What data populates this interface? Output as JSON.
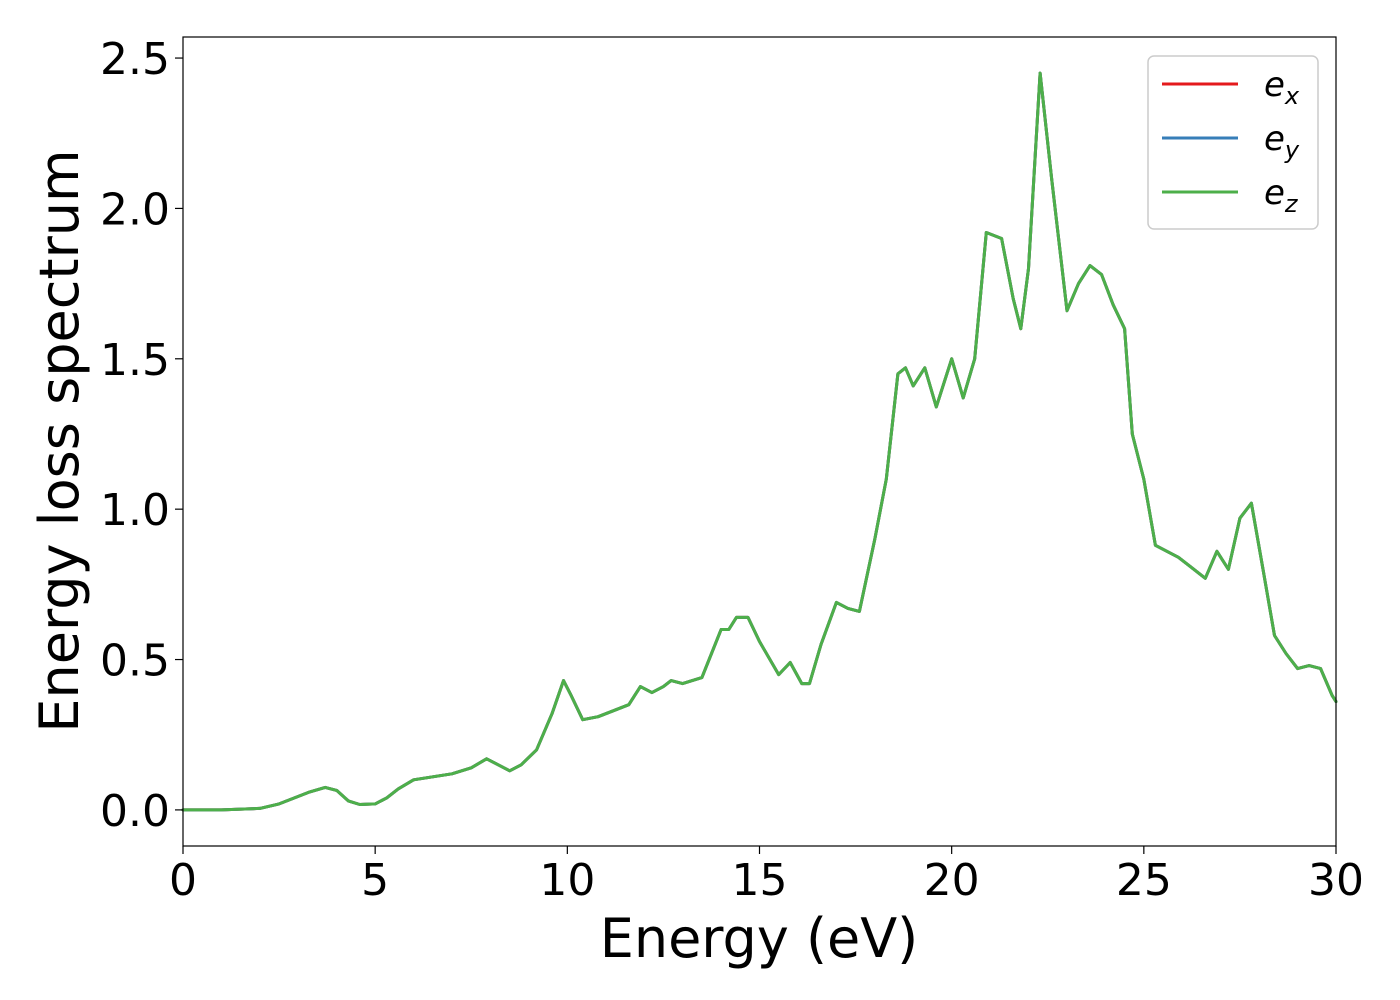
{
  "chart_data": {
    "type": "line",
    "title": "",
    "xlabel": "Energy (eV)",
    "ylabel": "Energy loss spectrum",
    "xlim": [
      0,
      30
    ],
    "ylim": [
      -0.12,
      2.57
    ],
    "xticks": [
      "0",
      "5",
      "10",
      "15",
      "20",
      "25",
      "30"
    ],
    "yticks": [
      "0.0",
      "0.5",
      "1.0",
      "1.5",
      "2.0",
      "2.5"
    ],
    "grid": false,
    "legend": {
      "position": "top-right"
    },
    "series": [
      {
        "name": "e",
        "sub": "x",
        "color": "#e41a1c",
        "x": [
          0,
          1,
          2,
          2.5,
          3,
          3.3,
          3.7,
          4.0,
          4.3,
          4.6,
          5.0,
          5.3,
          5.6,
          6.0,
          6.5,
          7.0,
          7.5,
          7.9,
          8.2,
          8.5,
          8.8,
          9.2,
          9.6,
          9.9,
          10.1,
          10.4,
          10.8,
          11.2,
          11.6,
          11.9,
          12.2,
          12.5,
          12.7,
          13.0,
          13.5,
          14.0,
          14.2,
          14.4,
          14.7,
          15.0,
          15.5,
          15.8,
          16.1,
          16.3,
          16.6,
          17.0,
          17.3,
          17.6,
          18.0,
          18.3,
          18.6,
          18.8,
          19.0,
          19.3,
          19.6,
          20.0,
          20.3,
          20.6,
          20.9,
          21.3,
          21.6,
          21.8,
          22.0,
          22.3,
          22.6,
          23.0,
          23.3,
          23.6,
          23.9,
          24.2,
          24.5,
          24.7,
          25.0,
          25.3,
          25.6,
          25.9,
          26.2,
          26.6,
          26.9,
          27.2,
          27.5,
          27.8,
          28.1,
          28.4,
          28.7,
          29.0,
          29.3,
          29.6,
          29.9,
          30.0
        ],
        "y": [
          0.0,
          0.0,
          0.005,
          0.02,
          0.045,
          0.06,
          0.075,
          0.065,
          0.03,
          0.018,
          0.02,
          0.04,
          0.07,
          0.1,
          0.11,
          0.12,
          0.14,
          0.17,
          0.15,
          0.13,
          0.15,
          0.2,
          0.32,
          0.43,
          0.38,
          0.3,
          0.31,
          0.33,
          0.35,
          0.41,
          0.39,
          0.41,
          0.43,
          0.42,
          0.44,
          0.6,
          0.6,
          0.64,
          0.64,
          0.56,
          0.45,
          0.49,
          0.42,
          0.42,
          0.55,
          0.69,
          0.67,
          0.66,
          0.9,
          1.1,
          1.45,
          1.47,
          1.41,
          1.47,
          1.34,
          1.5,
          1.37,
          1.5,
          1.92,
          1.9,
          1.7,
          1.6,
          1.8,
          2.45,
          2.1,
          1.66,
          1.75,
          1.81,
          1.78,
          1.68,
          1.6,
          1.25,
          1.1,
          0.88,
          0.86,
          0.84,
          0.81,
          0.77,
          0.86,
          0.8,
          0.97,
          1.02,
          0.8,
          0.58,
          0.52,
          0.47,
          0.48,
          0.47,
          0.38,
          0.36
        ]
      },
      {
        "name": "e",
        "sub": "y",
        "color": "#377eb8",
        "x": [
          0,
          1,
          2,
          2.5,
          3,
          3.3,
          3.7,
          4.0,
          4.3,
          4.6,
          5.0,
          5.3,
          5.6,
          6.0,
          6.5,
          7.0,
          7.5,
          7.9,
          8.2,
          8.5,
          8.8,
          9.2,
          9.6,
          9.9,
          10.1,
          10.4,
          10.8,
          11.2,
          11.6,
          11.9,
          12.2,
          12.5,
          12.7,
          13.0,
          13.5,
          14.0,
          14.2,
          14.4,
          14.7,
          15.0,
          15.5,
          15.8,
          16.1,
          16.3,
          16.6,
          17.0,
          17.3,
          17.6,
          18.0,
          18.3,
          18.6,
          18.8,
          19.0,
          19.3,
          19.6,
          20.0,
          20.3,
          20.6,
          20.9,
          21.3,
          21.6,
          21.8,
          22.0,
          22.3,
          22.6,
          23.0,
          23.3,
          23.6,
          23.9,
          24.2,
          24.5,
          24.7,
          25.0,
          25.3,
          25.6,
          25.9,
          26.2,
          26.6,
          26.9,
          27.2,
          27.5,
          27.8,
          28.1,
          28.4,
          28.7,
          29.0,
          29.3,
          29.6,
          29.9,
          30.0
        ],
        "y": [
          0.0,
          0.0,
          0.005,
          0.02,
          0.045,
          0.06,
          0.075,
          0.065,
          0.03,
          0.018,
          0.02,
          0.04,
          0.07,
          0.1,
          0.11,
          0.12,
          0.14,
          0.17,
          0.15,
          0.13,
          0.15,
          0.2,
          0.32,
          0.43,
          0.38,
          0.3,
          0.31,
          0.33,
          0.35,
          0.41,
          0.39,
          0.41,
          0.43,
          0.42,
          0.44,
          0.6,
          0.6,
          0.64,
          0.64,
          0.56,
          0.45,
          0.49,
          0.42,
          0.42,
          0.55,
          0.69,
          0.67,
          0.66,
          0.9,
          1.1,
          1.45,
          1.47,
          1.41,
          1.47,
          1.34,
          1.5,
          1.37,
          1.5,
          1.92,
          1.9,
          1.7,
          1.6,
          1.8,
          2.45,
          2.1,
          1.66,
          1.75,
          1.81,
          1.78,
          1.68,
          1.6,
          1.25,
          1.1,
          0.88,
          0.86,
          0.84,
          0.81,
          0.77,
          0.86,
          0.8,
          0.97,
          1.02,
          0.8,
          0.58,
          0.52,
          0.47,
          0.48,
          0.47,
          0.38,
          0.36
        ]
      },
      {
        "name": "e",
        "sub": "z",
        "color": "#4daf4a",
        "x": [
          0,
          1,
          2,
          2.5,
          3,
          3.3,
          3.7,
          4.0,
          4.3,
          4.6,
          5.0,
          5.3,
          5.6,
          6.0,
          6.5,
          7.0,
          7.5,
          7.9,
          8.2,
          8.5,
          8.8,
          9.2,
          9.6,
          9.9,
          10.1,
          10.4,
          10.8,
          11.2,
          11.6,
          11.9,
          12.2,
          12.5,
          12.7,
          13.0,
          13.5,
          14.0,
          14.2,
          14.4,
          14.7,
          15.0,
          15.5,
          15.8,
          16.1,
          16.3,
          16.6,
          17.0,
          17.3,
          17.6,
          18.0,
          18.3,
          18.6,
          18.8,
          19.0,
          19.3,
          19.6,
          20.0,
          20.3,
          20.6,
          20.9,
          21.3,
          21.6,
          21.8,
          22.0,
          22.3,
          22.6,
          23.0,
          23.3,
          23.6,
          23.9,
          24.2,
          24.5,
          24.7,
          25.0,
          25.3,
          25.6,
          25.9,
          26.2,
          26.6,
          26.9,
          27.2,
          27.5,
          27.8,
          28.1,
          28.4,
          28.7,
          29.0,
          29.3,
          29.6,
          29.9,
          30.0
        ],
        "y": [
          0.0,
          0.0,
          0.005,
          0.02,
          0.045,
          0.06,
          0.075,
          0.065,
          0.03,
          0.018,
          0.02,
          0.04,
          0.07,
          0.1,
          0.11,
          0.12,
          0.14,
          0.17,
          0.15,
          0.13,
          0.15,
          0.2,
          0.32,
          0.43,
          0.38,
          0.3,
          0.31,
          0.33,
          0.35,
          0.41,
          0.39,
          0.41,
          0.43,
          0.42,
          0.44,
          0.6,
          0.6,
          0.64,
          0.64,
          0.56,
          0.45,
          0.49,
          0.42,
          0.42,
          0.55,
          0.69,
          0.67,
          0.66,
          0.9,
          1.1,
          1.45,
          1.47,
          1.41,
          1.47,
          1.34,
          1.5,
          1.37,
          1.5,
          1.92,
          1.9,
          1.7,
          1.6,
          1.8,
          2.45,
          2.1,
          1.66,
          1.75,
          1.81,
          1.78,
          1.68,
          1.6,
          1.25,
          1.1,
          0.88,
          0.86,
          0.84,
          0.81,
          0.77,
          0.86,
          0.8,
          0.97,
          1.02,
          0.8,
          0.58,
          0.52,
          0.47,
          0.48,
          0.47,
          0.38,
          0.36
        ]
      }
    ]
  }
}
